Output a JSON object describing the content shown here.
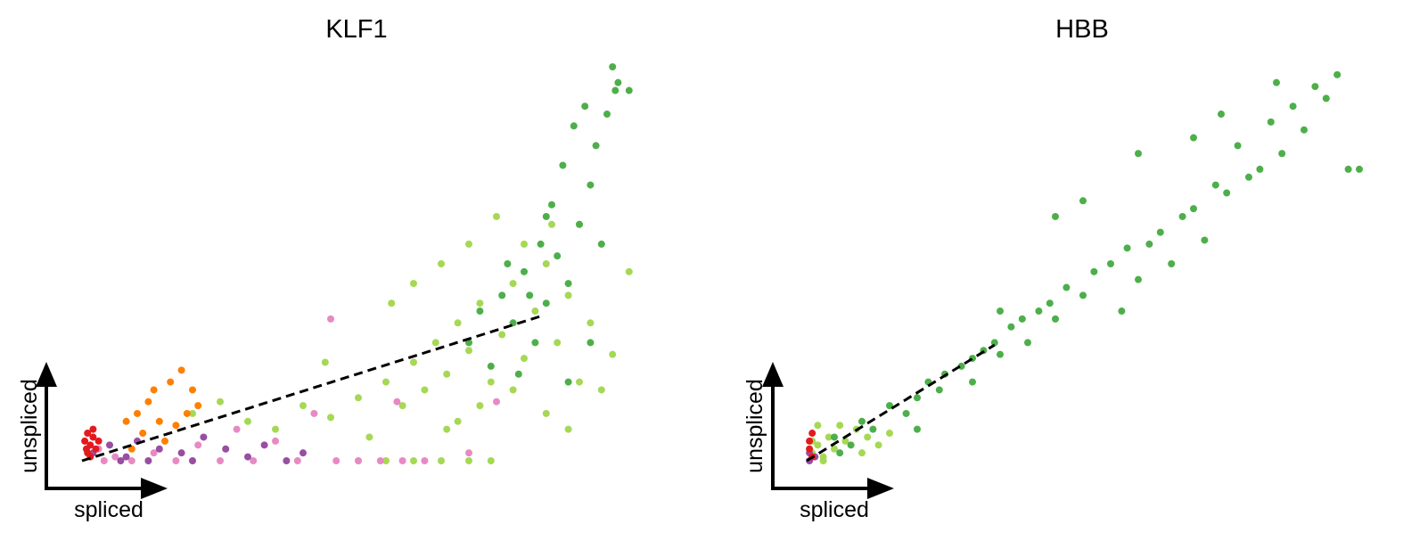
{
  "chart_data": [
    {
      "type": "scatter",
      "title": "KLF1",
      "x_label": "spliced",
      "y_label": "unspliced",
      "xlim": [
        0,
        100
      ],
      "ylim": [
        0,
        100
      ],
      "series": [
        {
          "color": "#a6d854",
          "x": [
            50,
            55,
            60,
            65,
            70,
            74,
            30,
            35,
            40,
            45,
            50,
            52,
            55,
            58,
            60,
            62,
            64,
            66,
            68,
            70,
            72,
            74,
            76,
            78,
            80,
            82,
            84,
            86,
            88,
            90,
            92,
            94,
            96,
            99,
            65,
            70,
            75,
            80,
            85,
            68,
            72,
            78,
            84,
            88,
            20,
            25,
            44,
            56,
            60,
            66,
            90
          ],
          "y": [
            0,
            0,
            0,
            0,
            0,
            0,
            10,
            8,
            14,
            11,
            16,
            6,
            20,
            14,
            25,
            18,
            30,
            22,
            35,
            28,
            40,
            20,
            32,
            45,
            26,
            38,
            50,
            30,
            42,
            20,
            35,
            18,
            27,
            48,
            50,
            55,
            62,
            55,
            60,
            10,
            14,
            18,
            12,
            8,
            12,
            15,
            25,
            40,
            45,
            8,
            60
          ]
        },
        {
          "color": "#4daf4a",
          "x": [
            70,
            72,
            74,
            76,
            78,
            80,
            82,
            84,
            86,
            88,
            90,
            92,
            94,
            85,
            87,
            89,
            91,
            93,
            95,
            97,
            96,
            96.5,
            99,
            83,
            79,
            88,
            92,
            81,
            84,
            77
          ],
          "y": [
            30,
            38,
            24,
            42,
            35,
            48,
            30,
            40,
            52,
            45,
            60,
            70,
            55,
            65,
            75,
            85,
            90,
            80,
            88,
            96,
            100,
            94,
            94,
            55,
            22,
            20,
            30,
            42,
            62,
            50
          ]
        },
        {
          "color": "#e78ac3",
          "x": [
            3,
            6,
            9,
            13,
            17,
            21,
            25,
            28,
            31,
            35,
            39,
            42,
            46,
            50,
            54,
            58,
            62,
            45,
            57,
            4,
            70,
            75
          ],
          "y": [
            3,
            1,
            0,
            2,
            0,
            4,
            0,
            8,
            0,
            5,
            0,
            12,
            0,
            0,
            0,
            0,
            0,
            36,
            15,
            0,
            2,
            15
          ]
        },
        {
          "color": "#984ea3",
          "x": [
            2,
            5,
            8,
            10,
            14,
            18,
            22,
            26,
            30,
            33,
            37,
            40,
            7,
            12,
            20
          ],
          "y": [
            2,
            4,
            1,
            5,
            3,
            2,
            6,
            3,
            1,
            4,
            0,
            2,
            0,
            0,
            0
          ]
        },
        {
          "color": "#ff7f00",
          "x": [
            10,
            12,
            14,
            16,
            18,
            20,
            19,
            11,
            9,
            15,
            17,
            13,
            21,
            8
          ],
          "y": [
            12,
            15,
            10,
            20,
            23,
            18,
            12,
            7,
            3,
            5,
            9,
            18,
            14,
            10
          ]
        },
        {
          "color": "#e31a1c",
          "x": [
            1,
            2,
            1.5,
            0.5,
            2.5,
            1,
            2,
            1.5,
            3,
            0.8
          ],
          "y": [
            7,
            6,
            4,
            5,
            3,
            2,
            8,
            1,
            5,
            3
          ]
        }
      ],
      "fit_line": {
        "color": "#000000",
        "x": [
          0,
          83
        ],
        "y": [
          0,
          36.7
        ]
      }
    },
    {
      "type": "scatter",
      "title": "HBB",
      "x_label": "spliced",
      "y_label": "unspliced",
      "xlim": [
        0,
        100
      ],
      "ylim": [
        0,
        100
      ],
      "series": [
        {
          "color": "#a6d854",
          "x": [
            1,
            2,
            3,
            4,
            5,
            7,
            9,
            11,
            13,
            2,
            1,
            6,
            15,
            3,
            10
          ],
          "y": [
            2,
            4,
            1,
            6,
            3,
            5,
            8,
            6,
            4,
            9,
            5,
            9,
            7,
            0,
            2
          ]
        },
        {
          "color": "#4daf4a",
          "x": [
            10,
            12,
            15,
            18,
            20,
            22,
            24,
            25,
            28,
            30,
            32,
            34,
            35,
            37,
            39,
            40,
            42,
            44,
            45,
            47,
            50,
            52,
            55,
            57,
            58,
            60,
            62,
            64,
            66,
            68,
            70,
            72,
            74,
            76,
            78,
            80,
            82,
            84,
            86,
            88,
            90,
            92,
            94,
            96,
            98,
            100,
            70,
            75,
            85,
            60,
            50,
            45,
            35,
            30,
            20,
            8,
            5,
            6
          ],
          "y": [
            10,
            8,
            14,
            12,
            16,
            20,
            18,
            22,
            24,
            26,
            28,
            30,
            27,
            34,
            36,
            30,
            38,
            40,
            36,
            44,
            42,
            48,
            50,
            38,
            54,
            46,
            55,
            58,
            50,
            62,
            64,
            56,
            70,
            68,
            80,
            72,
            74,
            86,
            78,
            90,
            84,
            95,
            92,
            98,
            74,
            74,
            82,
            88,
            96,
            78,
            66,
            62,
            38,
            20,
            8,
            4,
            6,
            2
          ]
        },
        {
          "color": "#984ea3",
          "x": [
            0.5,
            1.5,
            0.5
          ],
          "y": [
            0,
            1,
            2
          ]
        },
        {
          "color": "#e31a1c",
          "x": [
            0.5,
            1,
            0.5,
            1
          ],
          "y": [
            5,
            7,
            3,
            1
          ]
        }
      ],
      "fit_line": {
        "color": "#000000",
        "x": [
          0,
          34
        ],
        "y": [
          0,
          29.4
        ]
      }
    }
  ]
}
